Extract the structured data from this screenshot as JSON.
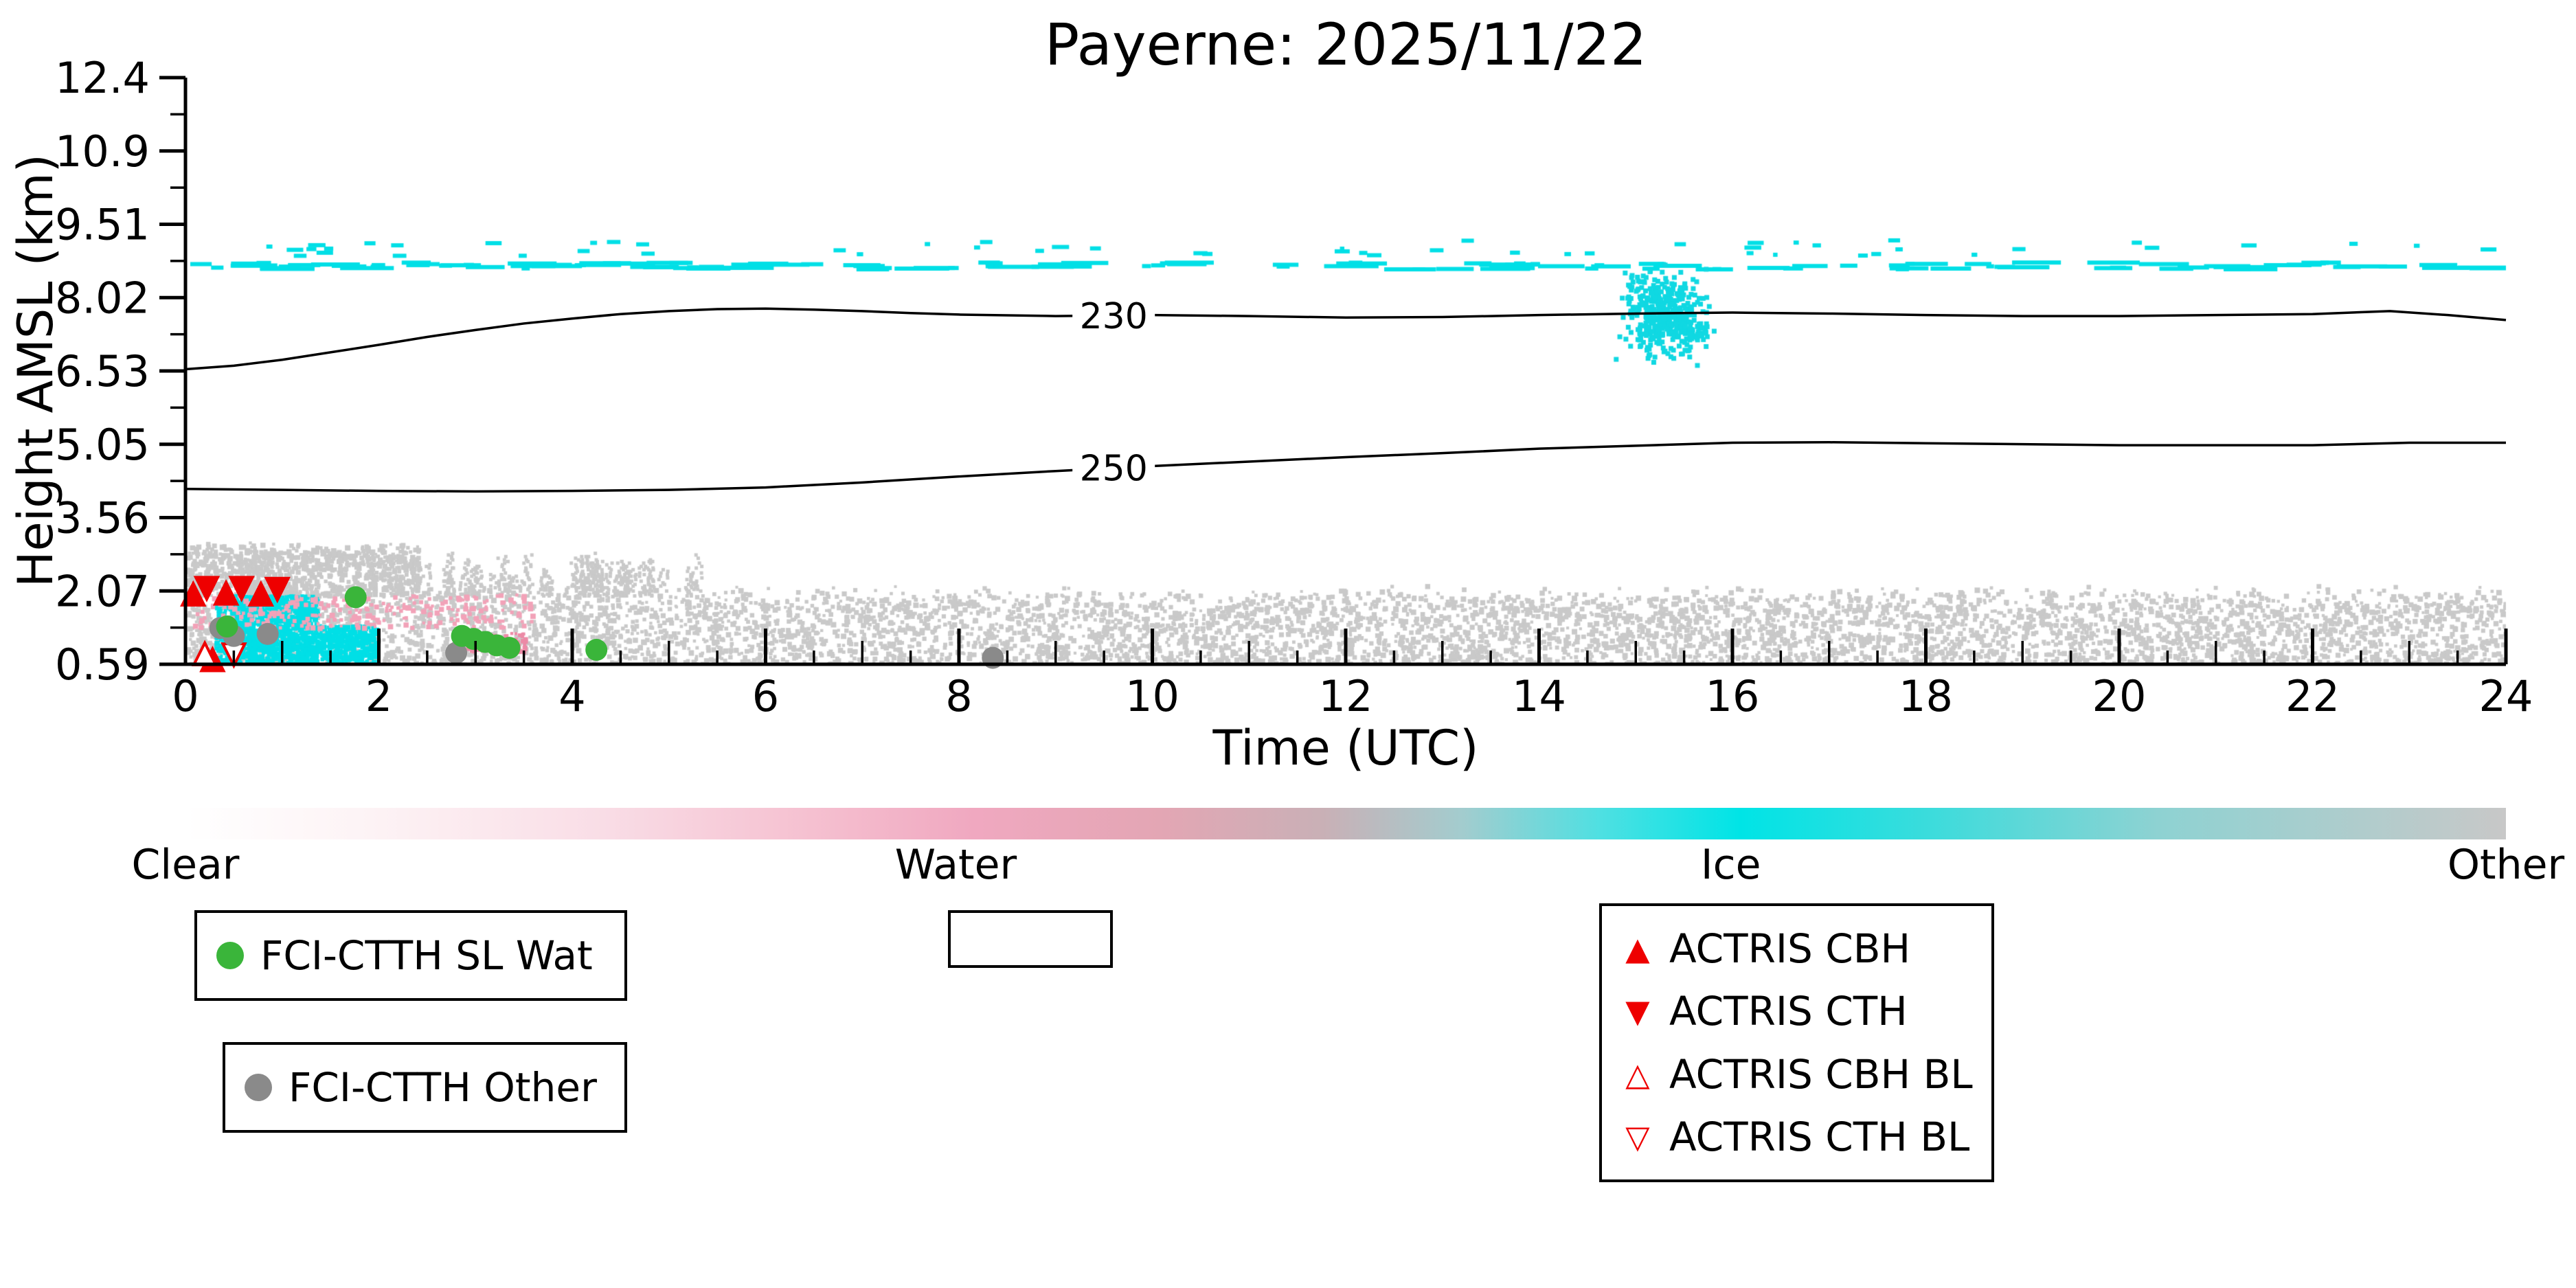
{
  "chart_data": {
    "type": "heatmap",
    "title": "Payerne: 2025/11/22",
    "xlabel": "Time (UTC)",
    "ylabel": "Height AMSL (km)",
    "xlim": [
      0,
      24
    ],
    "ylim": [
      0.59,
      12.4
    ],
    "xtick_labels": [
      "0",
      "2",
      "4",
      "6",
      "8",
      "10",
      "12",
      "14",
      "16",
      "18",
      "20",
      "22",
      "24"
    ],
    "ytick_labels": [
      "12.4",
      "10.9",
      "9.51",
      "8.02",
      "6.53",
      "5.05",
      "3.56",
      "2.07",
      "0.59"
    ],
    "grid": false,
    "contours": [
      {
        "label": "230",
        "label_pos": [
          9.6,
          7.6
        ],
        "points": [
          [
            0,
            6.53
          ],
          [
            0.5,
            6.6
          ],
          [
            1,
            6.72
          ],
          [
            1.5,
            6.87
          ],
          [
            2,
            7.02
          ],
          [
            2.5,
            7.18
          ],
          [
            3,
            7.32
          ],
          [
            3.5,
            7.45
          ],
          [
            4,
            7.55
          ],
          [
            4.5,
            7.64
          ],
          [
            5,
            7.7
          ],
          [
            5.5,
            7.74
          ],
          [
            6,
            7.75
          ],
          [
            6.5,
            7.73
          ],
          [
            7,
            7.7
          ],
          [
            7.5,
            7.66
          ],
          [
            8,
            7.63
          ],
          [
            9,
            7.6
          ],
          [
            10,
            7.62
          ],
          [
            11,
            7.6
          ],
          [
            12,
            7.57
          ],
          [
            13,
            7.58
          ],
          [
            14,
            7.62
          ],
          [
            15,
            7.65
          ],
          [
            16,
            7.67
          ],
          [
            17,
            7.65
          ],
          [
            18,
            7.62
          ],
          [
            19,
            7.6
          ],
          [
            20,
            7.6
          ],
          [
            21,
            7.62
          ],
          [
            22,
            7.64
          ],
          [
            22.8,
            7.7
          ],
          [
            23.4,
            7.62
          ],
          [
            24,
            7.52
          ]
        ]
      },
      {
        "label": "250",
        "label_pos": [
          9.6,
          4.54
        ],
        "points": [
          [
            0,
            4.12
          ],
          [
            1,
            4.1
          ],
          [
            2,
            4.08
          ],
          [
            3,
            4.07
          ],
          [
            4,
            4.08
          ],
          [
            5,
            4.1
          ],
          [
            6,
            4.15
          ],
          [
            7,
            4.25
          ],
          [
            8,
            4.37
          ],
          [
            9,
            4.48
          ],
          [
            10,
            4.58
          ],
          [
            11,
            4.67
          ],
          [
            12,
            4.76
          ],
          [
            13,
            4.84
          ],
          [
            14,
            4.93
          ],
          [
            15,
            4.99
          ],
          [
            16,
            5.05
          ],
          [
            17,
            5.06
          ],
          [
            18,
            5.04
          ],
          [
            19,
            5.02
          ],
          [
            20,
            5.0
          ],
          [
            21,
            5.0
          ],
          [
            22,
            5.0
          ],
          [
            23,
            5.05
          ],
          [
            24,
            5.05
          ]
        ]
      }
    ],
    "classification_regions": [
      {
        "name": "surface-clutter",
        "class": "other",
        "color": "#c9c9c9",
        "t": [
          0,
          24
        ],
        "h": [
          0.59,
          2.02
        ],
        "count": 6500,
        "edge_jitter": 0.22
      },
      {
        "name": "clutter-upper-left",
        "class": "other",
        "color": "#c9c9c9",
        "t": [
          0,
          2.4
        ],
        "h": [
          2.0,
          3.0
        ],
        "count": 1000,
        "edge_jitter": 0.1
      },
      {
        "name": "clutter-streaks",
        "class": "other",
        "color": "#c9c9c9",
        "shape": "streaks",
        "t": [
          2.4,
          5.3
        ],
        "h": [
          2.0,
          2.85
        ],
        "streaks": 46
      },
      {
        "name": "ice-low-left",
        "class": "ice",
        "color": "#00dfe6",
        "t": [
          0.3,
          1.35
        ],
        "h": [
          0.6,
          2.0
        ],
        "count": 1250
      },
      {
        "name": "ice-low-left-2",
        "class": "ice",
        "color": "#00dfe6",
        "t": [
          1.35,
          1.95
        ],
        "h": [
          0.6,
          1.4
        ],
        "count": 380
      },
      {
        "name": "water-low-left",
        "class": "water",
        "color": "#f2a2b8",
        "t": [
          0.05,
          3.6
        ],
        "h": [
          1.35,
          2.02
        ],
        "count": 260
      },
      {
        "name": "water-low-left-2",
        "class": "water",
        "color": "#ec8aa6",
        "t": [
          2.75,
          3.5
        ],
        "h": [
          0.85,
          1.25
        ],
        "count": 90
      },
      {
        "name": "ice-cirrus-line",
        "class": "ice",
        "color": "#00dfe6",
        "shape": "dashes",
        "t": [
          0,
          23.8
        ],
        "h": [
          8.58,
          8.72
        ],
        "count": 130,
        "dash_w": [
          10,
          80
        ]
      },
      {
        "name": "ice-cirrus-specks",
        "class": "ice",
        "color": "#00dfe6",
        "shape": "dashes",
        "t": [
          0,
          23.9
        ],
        "h": [
          8.85,
          9.18
        ],
        "count": 55,
        "dash_w": [
          6,
          26
        ]
      },
      {
        "name": "ice-cloud",
        "class": "ice",
        "color": "#10d8e2",
        "shape": "blob",
        "center": [
          15.25,
          7.7
        ],
        "spread": [
          0.2,
          0.4
        ],
        "count": 400
      },
      {
        "name": "ice-cloud-2",
        "class": "ice",
        "color": "#10d8e2",
        "shape": "blob",
        "center": [
          15.6,
          7.32
        ],
        "spread": [
          0.08,
          0.1
        ],
        "count": 40
      }
    ],
    "markers": {
      "fci_sl_wat": {
        "label": "FCI-CTTH SL Wat",
        "color": "#3ab53a",
        "points": [
          [
            0.43,
            1.35
          ],
          [
            1.76,
            1.94
          ],
          [
            2.86,
            1.16
          ],
          [
            2.98,
            1.1
          ],
          [
            3.1,
            1.04
          ],
          [
            3.22,
            0.97
          ],
          [
            3.35,
            0.92
          ],
          [
            4.25,
            0.88
          ]
        ]
      },
      "fci_other": {
        "label": "FCI-CTTH Other",
        "color": "#8a8a8a",
        "points": [
          [
            0.36,
            1.32
          ],
          [
            0.5,
            1.16
          ],
          [
            0.85,
            1.2
          ],
          [
            2.8,
            0.82
          ],
          [
            8.35,
            0.72
          ]
        ]
      },
      "actris_cbh": {
        "label": "ACTRIS CBH",
        "color": "#ee0000",
        "filled": true,
        "dir": "up",
        "points": [
          [
            0.08,
            2.0
          ],
          [
            0.42,
            2.02
          ],
          [
            0.78,
            2.0
          ],
          [
            0.28,
            0.68
          ]
        ]
      },
      "actris_cth": {
        "label": "ACTRIS CTH",
        "color": "#ee0000",
        "filled": true,
        "dir": "down",
        "points": [
          [
            0.22,
            2.12
          ],
          [
            0.58,
            2.12
          ],
          [
            0.95,
            2.1
          ]
        ]
      },
      "actris_cbh_bl": {
        "label": "ACTRIS CBH BL",
        "color": "#ee0000",
        "filled": false,
        "dir": "up",
        "points": [
          [
            0.2,
            0.8
          ]
        ]
      },
      "actris_cth_bl": {
        "label": "ACTRIS CTH BL",
        "color": "#ee0000",
        "filled": false,
        "dir": "down",
        "points": [
          [
            0.5,
            0.78
          ]
        ]
      }
    },
    "colorbar": {
      "labels": [
        {
          "text": "Clear",
          "pos": 0.0
        },
        {
          "text": "Water",
          "pos": 0.332
        },
        {
          "text": "Ice",
          "pos": 0.666
        },
        {
          "text": "Other",
          "pos": 1.0
        }
      ],
      "stops": [
        {
          "pos": 0.0,
          "color": "#ffffff"
        },
        {
          "pos": 0.08,
          "color": "#fdf3f5"
        },
        {
          "pos": 0.18,
          "color": "#f9dde6"
        },
        {
          "pos": 0.27,
          "color": "#f5c0d0"
        },
        {
          "pos": 0.34,
          "color": "#f0a8c0"
        },
        {
          "pos": 0.42,
          "color": "#e3a6b4"
        },
        {
          "pos": 0.49,
          "color": "#c9b0b6"
        },
        {
          "pos": 0.55,
          "color": "#a3ccce"
        },
        {
          "pos": 0.61,
          "color": "#4ee0e2"
        },
        {
          "pos": 0.67,
          "color": "#00e4e6"
        },
        {
          "pos": 0.75,
          "color": "#3adcdc"
        },
        {
          "pos": 0.85,
          "color": "#8ed2d2"
        },
        {
          "pos": 1.0,
          "color": "#c8c8c8"
        }
      ]
    }
  },
  "legends": {
    "fci_wat": "FCI-CTTH SL Wat",
    "fci_other": "FCI-CTTH Other",
    "actris": [
      {
        "marker": "▲",
        "label": "ACTRIS CBH"
      },
      {
        "marker": "▼",
        "label": "ACTRIS CTH"
      },
      {
        "marker": "△",
        "label": "ACTRIS CBH BL"
      },
      {
        "marker": "▽",
        "label": "ACTRIS CTH BL"
      }
    ]
  }
}
